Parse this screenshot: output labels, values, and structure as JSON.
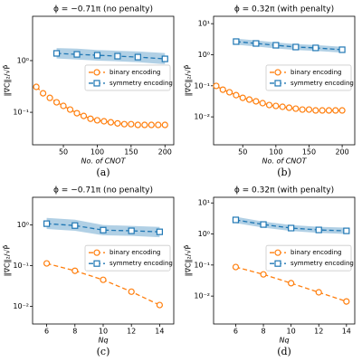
{
  "chart_data": [
    {
      "type": "line",
      "title": "ϕ = −0.71π   (no penalty)",
      "caption": "(a)",
      "xlabel": "No. of CNOT",
      "ylabel": "‖∇C‖₂/√P̄",
      "yscale": "log",
      "xlim": [
        4.5,
        213
      ],
      "ylim": [
        0.0235,
        7.2
      ],
      "xticks": [
        50,
        100,
        150,
        200
      ],
      "yticks": [
        {
          "value": 1,
          "label": "10⁰"
        },
        {
          "value": 0.1,
          "label": "10⁻¹"
        }
      ],
      "legend": "center right",
      "series": [
        {
          "name": "binary encoding",
          "color": "#ff7f0e",
          "marker": "circle",
          "x": [
            10,
            20,
            30,
            40,
            50,
            60,
            70,
            80,
            90,
            100,
            110,
            120,
            130,
            140,
            150,
            160,
            170,
            180,
            190,
            200
          ],
          "values": [
            0.31,
            0.233,
            0.19,
            0.156,
            0.133,
            0.113,
            0.096,
            0.085,
            0.075,
            0.07,
            0.067,
            0.064,
            0.061,
            0.059,
            0.059,
            0.057,
            0.057,
            0.057,
            0.057,
            0.057
          ]
        },
        {
          "name": "symmetry encoding",
          "color": "#1f77b4",
          "marker": "square",
          "x": [
            40,
            70,
            100,
            130,
            160,
            200
          ],
          "values": [
            1.38,
            1.32,
            1.27,
            1.22,
            1.17,
            1.08
          ],
          "lower": [
            1.1,
            1.05,
            1.0,
            0.97,
            0.93,
            0.85
          ],
          "upper": [
            1.75,
            1.7,
            1.6,
            1.55,
            1.5,
            1.4
          ]
        }
      ]
    },
    {
      "type": "line",
      "title": "ϕ = 0.32π   (with penalty)",
      "caption": "(b)",
      "xlabel": "No. of CNOT",
      "ylabel": "‖∇C‖₂/√P̄",
      "yscale": "log",
      "xlim": [
        6,
        219
      ],
      "ylim": [
        0.00126,
        17.3
      ],
      "xticks": [
        50,
        100,
        150,
        200
      ],
      "yticks": [
        {
          "value": 10,
          "label": "10¹"
        },
        {
          "value": 1,
          "label": "10⁰"
        },
        {
          "value": 0.1,
          "label": "10⁻¹"
        },
        {
          "value": 0.01,
          "label": "10⁻²"
        }
      ],
      "legend": "center right",
      "series": [
        {
          "name": "binary encoding",
          "color": "#ff7f0e",
          "marker": "circle",
          "x": [
            10,
            20,
            30,
            40,
            50,
            60,
            70,
            80,
            90,
            100,
            110,
            120,
            130,
            140,
            150,
            160,
            170,
            180,
            190,
            200
          ],
          "values": [
            0.099,
            0.075,
            0.062,
            0.05,
            0.041,
            0.036,
            0.0316,
            0.0276,
            0.024,
            0.0225,
            0.0211,
            0.0197,
            0.0184,
            0.0172,
            0.0172,
            0.0161,
            0.0161,
            0.0161,
            0.0161,
            0.0161
          ]
        },
        {
          "name": "symmetry encoding",
          "color": "#1f77b4",
          "marker": "square",
          "x": [
            40,
            70,
            100,
            130,
            160,
            200
          ],
          "values": [
            2.65,
            2.31,
            2.02,
            1.77,
            1.66,
            1.45
          ],
          "lower": [
            2.1,
            1.85,
            1.6,
            1.42,
            1.33,
            1.17
          ],
          "upper": [
            3.3,
            2.9,
            2.5,
            2.2,
            2.05,
            1.8
          ]
        }
      ]
    },
    {
      "type": "line",
      "title": "ϕ = −0.71π   (no penalty)",
      "caption": "(c)",
      "xlabel": "Nq",
      "ylabel": "‖∇C‖₂/√P̄",
      "yscale": "log",
      "xlim": [
        5,
        15
      ],
      "ylim": [
        0.0037,
        4.8
      ],
      "xticks": [
        6,
        8,
        10,
        12,
        14
      ],
      "yticks": [
        {
          "value": 1,
          "label": "10⁰"
        },
        {
          "value": 0.1,
          "label": "10⁻¹"
        },
        {
          "value": 0.01,
          "label": "10⁻²"
        }
      ],
      "legend": "center right",
      "series": [
        {
          "name": "binary encoding",
          "color": "#ff7f0e",
          "marker": "circle",
          "x": [
            6,
            8,
            10,
            12,
            14
          ],
          "values": [
            0.114,
            0.075,
            0.045,
            0.023,
            0.0108
          ]
        },
        {
          "name": "symmetry encoding",
          "color": "#1f77b4",
          "marker": "square",
          "x": [
            6,
            8,
            10,
            12,
            14
          ],
          "values": [
            1.08,
            0.97,
            0.75,
            0.72,
            0.68
          ],
          "lower": [
            0.8,
            0.72,
            0.56,
            0.54,
            0.5
          ],
          "upper": [
            1.5,
            1.35,
            1.0,
            0.95,
            0.9
          ]
        }
      ]
    },
    {
      "type": "line",
      "title": "ϕ = 0.32π   (with penalty)",
      "caption": "(d)",
      "xlabel": "Nq",
      "ylabel": "‖∇C‖₂/√P̄",
      "yscale": "log",
      "xlim": [
        4.4,
        14.6
      ],
      "ylim": [
        0.00126,
        15.2
      ],
      "xticks": [
        6,
        8,
        10,
        12,
        14
      ],
      "yticks": [
        {
          "value": 10,
          "label": "10¹"
        },
        {
          "value": 1,
          "label": "10⁰"
        },
        {
          "value": 0.1,
          "label": "10⁻¹"
        },
        {
          "value": 0.01,
          "label": "10⁻²"
        }
      ],
      "legend": "center right",
      "series": [
        {
          "name": "binary encoding",
          "color": "#ff7f0e",
          "marker": "circle",
          "x": [
            6,
            8,
            10,
            12,
            14
          ],
          "values": [
            0.086,
            0.05,
            0.026,
            0.0132,
            0.0067
          ]
        },
        {
          "name": "symmetry encoding",
          "color": "#1f77b4",
          "marker": "square",
          "x": [
            6,
            8,
            10,
            12,
            14
          ],
          "values": [
            2.84,
            2.02,
            1.55,
            1.35,
            1.26
          ],
          "lower": [
            2.25,
            1.6,
            1.25,
            1.08,
            1.0
          ],
          "upper": [
            3.6,
            2.5,
            1.95,
            1.7,
            1.6
          ]
        }
      ]
    }
  ]
}
